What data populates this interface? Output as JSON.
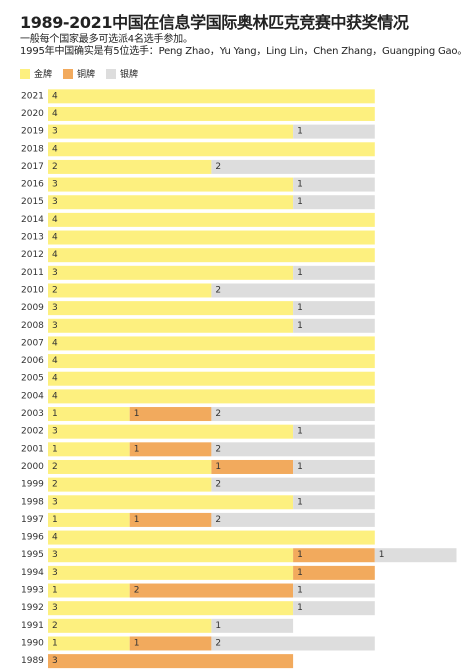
{
  "chart_data": {
    "type": "bar",
    "orientation": "horizontal",
    "stacked": true,
    "title": "1989-2021中国在信息学国际奥林匹克竞赛中获奖情况",
    "subtitle_lines": [
      "一般每个国家最多可选派4名选手参加。",
      "1995年中国确实是有5位选手：Peng Zhao，Yu Yang，Ling Lin，Chen Zhang，Guangping Gao。"
    ],
    "legend_position": "top-left",
    "grid": false,
    "xlim": [
      0,
      5
    ],
    "categories": [
      "2021",
      "2020",
      "2019",
      "2018",
      "2017",
      "2016",
      "2015",
      "2014",
      "2013",
      "2012",
      "2011",
      "2010",
      "2009",
      "2008",
      "2007",
      "2006",
      "2005",
      "2004",
      "2003",
      "2002",
      "2001",
      "2000",
      "1999",
      "1998",
      "1997",
      "1996",
      "1995",
      "1994",
      "1993",
      "1992",
      "1991",
      "1990",
      "1989"
    ],
    "series": [
      {
        "name": "金牌",
        "color": "#fdf07f",
        "values": [
          4,
          4,
          3,
          4,
          2,
          3,
          3,
          4,
          4,
          4,
          3,
          2,
          3,
          3,
          4,
          4,
          4,
          4,
          1,
          3,
          1,
          2,
          2,
          3,
          1,
          4,
          3,
          3,
          1,
          3,
          2,
          1,
          0
        ]
      },
      {
        "name": "铜牌",
        "color": "#f2aa5d",
        "values": [
          0,
          0,
          0,
          0,
          0,
          0,
          0,
          0,
          0,
          0,
          0,
          0,
          0,
          0,
          0,
          0,
          0,
          0,
          1,
          0,
          1,
          1,
          0,
          0,
          1,
          0,
          1,
          1,
          2,
          0,
          0,
          1,
          3
        ]
      },
      {
        "name": "银牌",
        "color": "#dddddd",
        "values": [
          0,
          0,
          1,
          0,
          2,
          1,
          1,
          0,
          0,
          0,
          1,
          2,
          1,
          1,
          0,
          0,
          0,
          0,
          2,
          1,
          2,
          1,
          2,
          1,
          2,
          0,
          1,
          0,
          1,
          1,
          1,
          2,
          0
        ]
      }
    ]
  }
}
